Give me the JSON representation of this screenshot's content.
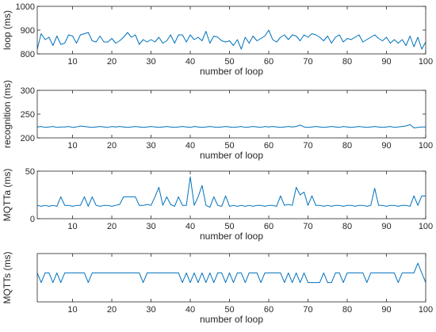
{
  "chart_data": [
    {
      "type": "line",
      "xlabel": "number of loop",
      "ylabel": "loop (ms)",
      "xlim": [
        1,
        100
      ],
      "ylim": [
        800,
        1000
      ],
      "xticks": [
        10,
        20,
        30,
        40,
        50,
        60,
        70,
        80,
        90,
        100
      ],
      "yticks": [
        800,
        900,
        1000
      ],
      "grid": false,
      "color": "#0072BD",
      "x": [
        1,
        2,
        3,
        4,
        5,
        6,
        7,
        8,
        9,
        10,
        11,
        12,
        13,
        14,
        15,
        16,
        17,
        18,
        19,
        20,
        21,
        22,
        23,
        24,
        25,
        26,
        27,
        28,
        29,
        30,
        31,
        32,
        33,
        34,
        35,
        36,
        37,
        38,
        39,
        40,
        41,
        42,
        43,
        44,
        45,
        46,
        47,
        48,
        49,
        50,
        51,
        52,
        53,
        54,
        55,
        56,
        57,
        58,
        59,
        60,
        61,
        62,
        63,
        64,
        65,
        66,
        67,
        68,
        69,
        70,
        71,
        72,
        73,
        74,
        75,
        76,
        77,
        78,
        79,
        80,
        81,
        82,
        83,
        84,
        85,
        86,
        87,
        88,
        89,
        90,
        91,
        92,
        93,
        94,
        95,
        96,
        97,
        98,
        99,
        100
      ],
      "y": [
        820,
        885,
        860,
        870,
        835,
        875,
        840,
        845,
        880,
        875,
        845,
        880,
        885,
        890,
        855,
        850,
        875,
        850,
        850,
        865,
        845,
        855,
        870,
        890,
        870,
        880,
        840,
        860,
        850,
        860,
        850,
        870,
        845,
        855,
        880,
        845,
        880,
        880,
        850,
        880,
        860,
        870,
        855,
        895,
        845,
        875,
        870,
        855,
        850,
        855,
        835,
        860,
        820,
        870,
        845,
        875,
        855,
        865,
        875,
        900,
        860,
        850,
        870,
        880,
        860,
        880,
        875,
        855,
        880,
        870,
        885,
        880,
        870,
        855,
        875,
        845,
        870,
        880,
        850,
        865,
        860,
        870,
        880,
        850,
        860,
        870,
        880,
        865,
        855,
        870,
        845,
        860,
        845,
        860,
        835,
        875,
        830,
        870,
        820,
        850
      ]
    },
    {
      "type": "line",
      "xlabel": "number of loop",
      "ylabel": "recognition (ms)",
      "xlim": [
        1,
        100
      ],
      "ylim": [
        200,
        300
      ],
      "xticks": [
        10,
        20,
        30,
        40,
        50,
        60,
        70,
        80,
        90,
        100
      ],
      "yticks": [
        200,
        250,
        300
      ],
      "grid": false,
      "color": "#0072BD",
      "x": [
        1,
        2,
        3,
        4,
        5,
        6,
        7,
        8,
        9,
        10,
        11,
        12,
        13,
        14,
        15,
        16,
        17,
        18,
        19,
        20,
        21,
        22,
        23,
        24,
        25,
        26,
        27,
        28,
        29,
        30,
        31,
        32,
        33,
        34,
        35,
        36,
        37,
        38,
        39,
        40,
        41,
        42,
        43,
        44,
        45,
        46,
        47,
        48,
        49,
        50,
        51,
        52,
        53,
        54,
        55,
        56,
        57,
        58,
        59,
        60,
        61,
        62,
        63,
        64,
        65,
        66,
        67,
        68,
        69,
        70,
        71,
        72,
        73,
        74,
        75,
        76,
        77,
        78,
        79,
        80,
        81,
        82,
        83,
        84,
        85,
        86,
        87,
        88,
        89,
        90,
        91,
        92,
        93,
        94,
        95,
        96,
        97,
        98,
        99,
        100
      ],
      "y": [
        223,
        224,
        222,
        223,
        224,
        222,
        223,
        223,
        224,
        222,
        223,
        225,
        224,
        223,
        222,
        223,
        224,
        223,
        222,
        224,
        223,
        224,
        223,
        222,
        223,
        224,
        223,
        222,
        223,
        224,
        223,
        222,
        223,
        224,
        223,
        222,
        223,
        224,
        223,
        222,
        224,
        223,
        222,
        223,
        224,
        223,
        222,
        223,
        224,
        223,
        222,
        223,
        224,
        222,
        223,
        224,
        223,
        222,
        224,
        223,
        224,
        223,
        222,
        223,
        224,
        223,
        224,
        227,
        223,
        222,
        223,
        224,
        223,
        222,
        223,
        224,
        223,
        222,
        224,
        223,
        222,
        223,
        224,
        223,
        222,
        223,
        224,
        223,
        222,
        223,
        224,
        222,
        223,
        224,
        225,
        228,
        221,
        222,
        223,
        223
      ]
    },
    {
      "type": "line",
      "xlabel": "number of loop",
      "ylabel": "MQTTa (ms)",
      "xlim": [
        1,
        100
      ],
      "ylim": [
        0,
        50
      ],
      "xticks": [
        10,
        20,
        30,
        40,
        50,
        60,
        70,
        80,
        90,
        100
      ],
      "yticks": [
        0,
        50
      ],
      "grid": false,
      "color": "#0072BD",
      "x": [
        1,
        2,
        3,
        4,
        5,
        6,
        7,
        8,
        9,
        10,
        11,
        12,
        13,
        14,
        15,
        16,
        17,
        18,
        19,
        20,
        21,
        22,
        23,
        24,
        25,
        26,
        27,
        28,
        29,
        30,
        31,
        32,
        33,
        34,
        35,
        36,
        37,
        38,
        39,
        40,
        41,
        42,
        43,
        44,
        45,
        46,
        47,
        48,
        49,
        50,
        51,
        52,
        53,
        54,
        55,
        56,
        57,
        58,
        59,
        60,
        61,
        62,
        63,
        64,
        65,
        66,
        67,
        68,
        69,
        70,
        71,
        72,
        73,
        74,
        75,
        76,
        77,
        78,
        79,
        80,
        81,
        82,
        83,
        84,
        85,
        86,
        87,
        88,
        89,
        90,
        91,
        92,
        93,
        94,
        95,
        96,
        97,
        98,
        99,
        100
      ],
      "y": [
        14,
        13,
        14,
        13,
        14,
        13,
        23,
        14,
        14,
        13,
        14,
        14,
        23,
        13,
        23,
        14,
        13,
        14,
        14,
        13,
        14,
        15,
        23,
        23,
        23,
        23,
        14,
        14,
        15,
        14,
        23,
        33,
        14,
        23,
        15,
        13,
        23,
        14,
        14,
        44,
        14,
        23,
        35,
        14,
        12,
        23,
        14,
        13,
        24,
        13,
        14,
        13,
        14,
        13,
        14,
        13,
        14,
        14,
        13,
        14,
        14,
        13,
        24,
        14,
        15,
        14,
        33,
        25,
        28,
        14,
        24,
        14,
        14,
        13,
        14,
        13,
        14,
        14,
        13,
        14,
        14,
        13,
        14,
        14,
        13,
        14,
        32,
        14,
        14,
        13,
        14,
        14,
        13,
        14,
        14,
        13,
        24,
        14,
        24,
        24
      ]
    },
    {
      "type": "line",
      "xlabel": "number of loop",
      "ylabel": "MQTTs (ms)",
      "xlim": [
        1,
        100
      ],
      "ylim": [
        0,
        5
      ],
      "xticks": [
        10,
        20,
        30,
        40,
        50,
        60,
        70,
        80,
        90,
        100
      ],
      "yticks": [],
      "grid": false,
      "color": "#0072BD",
      "x": [
        1,
        2,
        3,
        4,
        5,
        6,
        7,
        8,
        9,
        10,
        11,
        12,
        13,
        14,
        15,
        16,
        17,
        18,
        19,
        20,
        21,
        22,
        23,
        24,
        25,
        26,
        27,
        28,
        29,
        30,
        31,
        32,
        33,
        34,
        35,
        36,
        37,
        38,
        39,
        40,
        41,
        42,
        43,
        44,
        45,
        46,
        47,
        48,
        49,
        50,
        51,
        52,
        53,
        54,
        55,
        56,
        57,
        58,
        59,
        60,
        61,
        62,
        63,
        64,
        65,
        66,
        67,
        68,
        69,
        70,
        71,
        72,
        73,
        74,
        75,
        76,
        77,
        78,
        79,
        80,
        81,
        82,
        83,
        84,
        85,
        86,
        87,
        88,
        89,
        90,
        91,
        92,
        93,
        94,
        95,
        96,
        97,
        98,
        99,
        100
      ],
      "y": [
        3,
        2,
        3,
        3,
        2,
        3,
        2,
        3,
        3,
        3,
        3,
        3,
        3,
        2,
        3,
        3,
        3,
        3,
        3,
        3,
        3,
        3,
        3,
        3,
        3,
        3,
        3,
        2,
        3,
        3,
        3,
        3,
        3,
        3,
        3,
        3,
        3,
        2,
        3,
        2,
        3,
        2,
        3,
        2,
        3,
        2,
        3,
        3,
        2,
        3,
        2,
        3,
        3,
        2,
        3,
        3,
        3,
        2,
        3,
        3,
        3,
        3,
        3,
        2,
        3,
        2,
        3,
        2,
        3,
        2,
        2,
        2,
        2,
        3,
        2,
        2,
        3,
        3,
        2,
        3,
        3,
        3,
        3,
        3,
        2,
        3,
        3,
        3,
        3,
        3,
        3,
        3,
        2,
        3,
        3,
        3,
        3,
        4,
        3,
        2
      ]
    }
  ]
}
